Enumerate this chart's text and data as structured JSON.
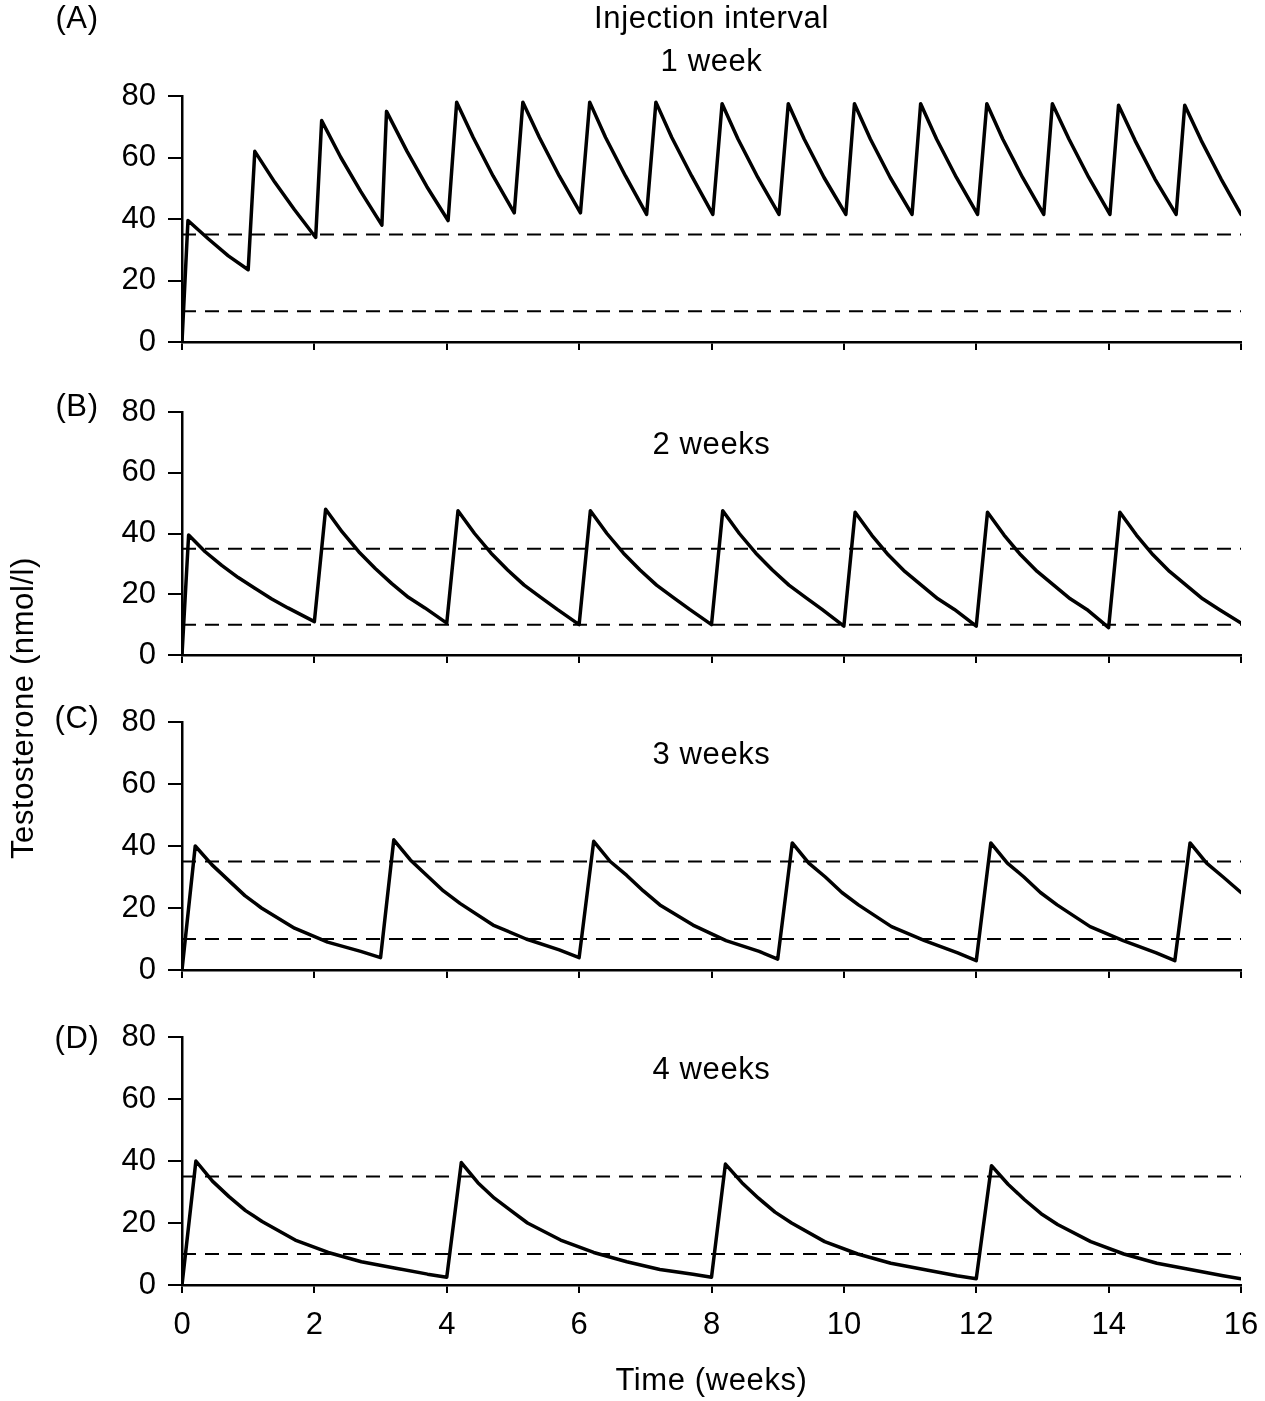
{
  "chart_data": [
    {
      "type": "line",
      "title": "Injection interval",
      "subtitle": "1 week",
      "annotations": [
        "(A)"
      ],
      "color": "#000000",
      "marker": "none",
      "line_style": "solid",
      "legend": false,
      "grid": false,
      "tick_labels": "y",
      "x": [
        0,
        0.09,
        0.4,
        0.7,
        1.0,
        1.1,
        1.4,
        1.7,
        2.02,
        2.11,
        2.4,
        2.7,
        3.02,
        3.09,
        3.4,
        3.7,
        4.02,
        4.15,
        4.4,
        4.7,
        5.02,
        5.15,
        5.4,
        5.7,
        6.02,
        6.16,
        6.4,
        6.7,
        7.02,
        7.16,
        7.4,
        7.7,
        8.02,
        8.16,
        8.4,
        8.7,
        9.02,
        9.16,
        9.4,
        9.7,
        10.03,
        10.16,
        10.4,
        10.7,
        11.03,
        11.16,
        11.4,
        11.7,
        12.02,
        12.16,
        12.4,
        12.7,
        13.02,
        13.15,
        13.4,
        13.7,
        14.02,
        14.15,
        14.4,
        14.7,
        15.02,
        15.15,
        15.4,
        15.7,
        16
      ],
      "values": [
        0,
        39.5,
        33.5,
        28,
        23.5,
        62,
        52,
        43,
        34,
        72,
        60,
        49,
        38,
        75,
        62,
        50.5,
        39.5,
        78,
        66.5,
        54,
        42,
        78,
        66.5,
        54,
        42,
        78,
        66.5,
        54,
        41.5,
        78,
        66.5,
        54,
        41.5,
        77.5,
        66,
        53.5,
        41.5,
        77.5,
        66,
        53.5,
        41.5,
        77.5,
        66,
        53.5,
        41.5,
        77.5,
        66,
        53.5,
        41.5,
        77.5,
        66,
        53.5,
        41.5,
        77.5,
        66,
        53.5,
        41.5,
        77,
        65.5,
        53,
        41.5,
        77,
        65.5,
        53,
        41.5
      ],
      "xlim": [
        0,
        16
      ],
      "xticks": [
        0,
        2,
        4,
        6,
        8,
        10,
        12,
        14,
        16
      ],
      "ylim": [
        0,
        80
      ],
      "yticks": [
        0,
        20,
        40,
        60,
        80
      ],
      "ref_lines": [
        {
          "axis": "y",
          "value": 35,
          "color": "#000000",
          "line_style": "dashed"
        },
        {
          "axis": "y",
          "value": 10,
          "color": "#000000",
          "line_style": "dashed"
        }
      ]
    },
    {
      "type": "line",
      "title": "2 weeks",
      "annotations": [
        "(B)"
      ],
      "color": "#000000",
      "marker": "none",
      "line_style": "solid",
      "legend": false,
      "grid": false,
      "tick_labels": "y",
      "x": [
        0,
        0.1,
        0.35,
        0.6,
        0.85,
        1.1,
        1.35,
        1.6,
        2.0,
        2.17,
        2.42,
        2.67,
        2.92,
        3.17,
        3.42,
        3.67,
        4.0,
        4.17,
        4.42,
        4.67,
        4.92,
        5.17,
        5.42,
        5.67,
        6.0,
        6.17,
        6.42,
        6.67,
        6.92,
        7.17,
        7.42,
        7.67,
        8.0,
        8.17,
        8.42,
        8.67,
        8.92,
        9.17,
        9.42,
        9.67,
        10.0,
        10.17,
        10.42,
        10.67,
        10.92,
        11.17,
        11.42,
        11.67,
        12.0,
        12.17,
        12.42,
        12.67,
        12.92,
        13.17,
        13.42,
        13.67,
        14.0,
        14.17,
        14.42,
        14.67,
        14.92,
        15.17,
        15.42,
        15.67,
        16
      ],
      "values": [
        0,
        39.5,
        34,
        29.5,
        25.5,
        22,
        18.5,
        15.5,
        11,
        48,
        40.5,
        34,
        28.5,
        23.5,
        19,
        15.5,
        10.5,
        47.5,
        40,
        33.5,
        28,
        23,
        19,
        15,
        10,
        47.5,
        40,
        33.5,
        28,
        23,
        19,
        15,
        10,
        47.5,
        40,
        33.5,
        28,
        23,
        19,
        15,
        9.5,
        47,
        39.5,
        33,
        27.5,
        23,
        18.5,
        15,
        9.5,
        47,
        39.5,
        33,
        27.5,
        23,
        18.5,
        15,
        9,
        47,
        39.5,
        33,
        27.5,
        23,
        18.5,
        15,
        10.5
      ],
      "xlim": [
        0,
        16
      ],
      "xticks": [
        0,
        2,
        4,
        6,
        8,
        10,
        12,
        14,
        16
      ],
      "ylim": [
        0,
        80
      ],
      "yticks": [
        0,
        20,
        40,
        60,
        80
      ],
      "ref_lines": [
        {
          "axis": "y",
          "value": 35,
          "color": "#000000",
          "line_style": "dashed"
        },
        {
          "axis": "y",
          "value": 10,
          "color": "#000000",
          "line_style": "dashed"
        }
      ]
    },
    {
      "type": "line",
      "title": "3 weeks",
      "ylabel": "Testosterone (nmol/l)",
      "annotations": [
        "(C)"
      ],
      "color": "#000000",
      "marker": "none",
      "line_style": "solid",
      "legend": false,
      "grid": false,
      "tick_labels": "y",
      "x": [
        0,
        0.2,
        0.45,
        0.7,
        0.95,
        1.2,
        1.7,
        2.2,
        2.7,
        3.0,
        3.2,
        3.45,
        3.7,
        3.95,
        4.2,
        4.7,
        5.2,
        5.7,
        6.0,
        6.22,
        6.47,
        6.72,
        6.97,
        7.22,
        7.72,
        8.22,
        8.72,
        9.0,
        9.22,
        9.47,
        9.72,
        9.97,
        10.22,
        10.72,
        11.22,
        11.72,
        12.0,
        12.22,
        12.47,
        12.72,
        12.97,
        13.22,
        13.72,
        14.22,
        14.72,
        15.0,
        15.23,
        15.48,
        15.73,
        16
      ],
      "values": [
        0,
        40,
        34,
        29,
        24,
        20,
        13.5,
        9,
        6,
        4,
        42,
        35.5,
        30.5,
        25.5,
        21.5,
        14.5,
        10,
        6.5,
        4,
        41.5,
        35,
        30.5,
        25.5,
        21,
        14.5,
        9.5,
        6,
        3.5,
        41,
        34.5,
        30,
        25,
        21,
        14,
        9.5,
        5.5,
        3,
        41,
        34.5,
        30,
        25,
        21,
        14,
        9.5,
        5.5,
        3,
        41,
        34.5,
        30,
        25
      ],
      "xlim": [
        0,
        16
      ],
      "xticks": [
        0,
        2,
        4,
        6,
        8,
        10,
        12,
        14,
        16
      ],
      "ylim": [
        0,
        80
      ],
      "yticks": [
        0,
        20,
        40,
        60,
        80
      ],
      "ref_lines": [
        {
          "axis": "y",
          "value": 35,
          "color": "#000000",
          "line_style": "dashed"
        },
        {
          "axis": "y",
          "value": 10,
          "color": "#000000",
          "line_style": "dashed"
        }
      ]
    },
    {
      "type": "line",
      "title": "4 weeks",
      "xlabel": "Time (weeks)",
      "annotations": [
        "(D)"
      ],
      "color": "#000000",
      "marker": "none",
      "line_style": "solid",
      "legend": false,
      "grid": false,
      "x": [
        0,
        0.21,
        0.46,
        0.71,
        0.96,
        1.21,
        1.71,
        2.21,
        2.71,
        3.21,
        3.71,
        4.0,
        4.22,
        4.47,
        4.72,
        4.97,
        5.22,
        5.72,
        6.22,
        6.72,
        7.22,
        7.72,
        8.0,
        8.21,
        8.46,
        8.71,
        8.96,
        9.21,
        9.71,
        10.21,
        10.71,
        11.21,
        11.71,
        12.0,
        12.23,
        12.48,
        12.73,
        12.98,
        13.23,
        13.73,
        14.23,
        14.73,
        15.23,
        15.73,
        16
      ],
      "values": [
        0,
        40,
        33.5,
        28.5,
        24,
        20.5,
        14.5,
        10.5,
        7.5,
        5.5,
        3.5,
        2.5,
        39.5,
        33,
        28,
        24,
        20,
        14.5,
        10.5,
        7.5,
        5,
        3.5,
        2.5,
        39,
        33,
        28,
        23.5,
        20,
        14,
        10,
        7,
        5,
        3,
        2,
        38.5,
        32.5,
        27.5,
        23,
        19.5,
        14,
        10,
        7,
        5,
        3,
        2
      ],
      "xlim": [
        0,
        16
      ],
      "xticks": [
        0,
        2,
        4,
        6,
        8,
        10,
        12,
        14,
        16
      ],
      "ylim": [
        0,
        80
      ],
      "yticks": [
        0,
        20,
        40,
        60,
        80
      ],
      "ref_lines": [
        {
          "axis": "y",
          "value": 35,
          "color": "#000000",
          "line_style": "dashed"
        },
        {
          "axis": "y",
          "value": 10,
          "color": "#000000",
          "line_style": "dashed"
        }
      ]
    }
  ]
}
